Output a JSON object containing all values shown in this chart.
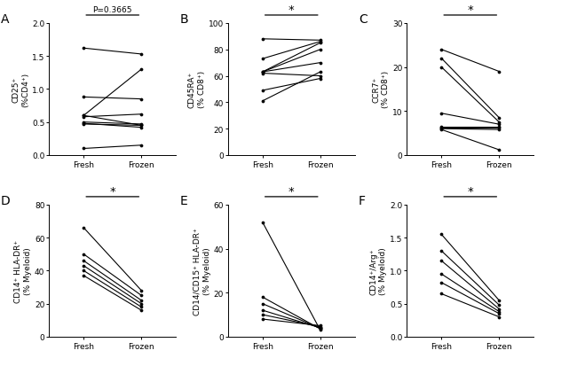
{
  "panels": [
    {
      "label": "A",
      "ylabel": "CD25⁺\n(%CD4⁺)",
      "ylim": [
        0,
        2.0
      ],
      "yticks": [
        0.0,
        0.5,
        1.0,
        1.5,
        2.0
      ],
      "ytick_labels": [
        "0.0",
        "0.5",
        "1.0",
        "1.5",
        "2.0"
      ],
      "sig_text": "P=0.3665",
      "sig_is_pval": true,
      "fresh": [
        1.62,
        0.88,
        0.6,
        0.58,
        0.47,
        0.1,
        0.6,
        0.5,
        0.48
      ],
      "frozen": [
        1.53,
        0.85,
        1.3,
        0.62,
        0.45,
        0.15,
        0.45,
        0.47,
        0.42
      ]
    },
    {
      "label": "B",
      "ylabel": "CD45RA⁺\n(% CD8⁺)",
      "ylim": [
        0,
        100
      ],
      "yticks": [
        0,
        20,
        40,
        60,
        80,
        100
      ],
      "ytick_labels": [
        "0",
        "20",
        "40",
        "60",
        "80",
        "100"
      ],
      "sig_text": "*",
      "sig_is_pval": false,
      "fresh": [
        88,
        73,
        63,
        63,
        63,
        62,
        49,
        41
      ],
      "frozen": [
        87,
        86,
        85,
        80,
        70,
        60,
        58,
        63
      ]
    },
    {
      "label": "C",
      "ylabel": "CCR7⁺\n(% CD8⁺)",
      "ylim": [
        0,
        30
      ],
      "yticks": [
        0,
        10,
        20,
        30
      ],
      "ytick_labels": [
        "0",
        "10",
        "20",
        "30"
      ],
      "sig_text": "*",
      "sig_is_pval": false,
      "fresh": [
        24,
        22,
        20,
        9.5,
        6.5,
        6.2,
        6.0,
        5.8
      ],
      "frozen": [
        19,
        8.5,
        7.5,
        7.0,
        6.5,
        6.2,
        5.8,
        1.2
      ]
    },
    {
      "label": "D",
      "ylabel": "CD14⁺ HLA-DR⁺\n(% Myeloid)",
      "ylim": [
        0,
        80
      ],
      "yticks": [
        0,
        20,
        40,
        60,
        80
      ],
      "ytick_labels": [
        "0",
        "20",
        "40",
        "60",
        "80"
      ],
      "sig_text": "*",
      "sig_is_pval": false,
      "fresh": [
        66,
        50,
        46,
        43,
        40,
        37
      ],
      "frozen": [
        28,
        25,
        22,
        20,
        18,
        16
      ]
    },
    {
      "label": "E",
      "ylabel": "CD14/CD15⁺ HLA-DR⁺\n(% Myeloid)",
      "ylim": [
        0,
        60
      ],
      "yticks": [
        0,
        20,
        40,
        60
      ],
      "ytick_labels": [
        "0",
        "20",
        "40",
        "60"
      ],
      "sig_text": "*",
      "sig_is_pval": false,
      "fresh": [
        52,
        18,
        15,
        12,
        10,
        8
      ],
      "frozen": [
        3,
        3.5,
        3.8,
        4,
        4.5,
        5
      ]
    },
    {
      "label": "F",
      "ylabel": "CD14⁺/Arg⁺\n(% Myeloid)",
      "ylim": [
        0,
        2.0
      ],
      "yticks": [
        0.0,
        0.5,
        1.0,
        1.5,
        2.0
      ],
      "ytick_labels": [
        "0.0",
        "0.5",
        "1.0",
        "1.5",
        "2.0"
      ],
      "sig_text": "*",
      "sig_is_pval": false,
      "fresh": [
        1.55,
        1.3,
        1.15,
        0.95,
        0.82,
        0.65
      ],
      "frozen": [
        0.55,
        0.48,
        0.42,
        0.38,
        0.35,
        0.3
      ]
    }
  ],
  "xticklabels": [
    "Fresh",
    "Frozen"
  ],
  "line_color": "#000000",
  "bg_color": "#ffffff",
  "tick_fontsize": 6.5,
  "label_fontsize": 6.5,
  "panel_label_fontsize": 10
}
